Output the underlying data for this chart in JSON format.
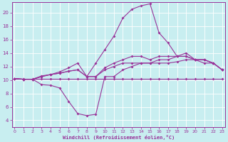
{
  "bg_color": "#c8eef0",
  "line_color": "#993399",
  "grid_color": "#ffffff",
  "xlabel": "Windchill (Refroidissement éolien,°C)",
  "xlabel_color": "#993399",
  "xtick_color": "#993399",
  "ytick_color": "#993399",
  "x": [
    0,
    1,
    2,
    3,
    4,
    5,
    6,
    7,
    8,
    9,
    10,
    11,
    12,
    13,
    14,
    15,
    16,
    17,
    18,
    19,
    20,
    21,
    22,
    23
  ],
  "line1": [
    10.2,
    10.2,
    10.2,
    10.2,
    10.2,
    10.2,
    10.2,
    10.2,
    10.2,
    10.2,
    10.2,
    10.2,
    10.2,
    10.2,
    10.2,
    10.2,
    10.2,
    10.2,
    10.2,
    10.2,
    10.2,
    10.2,
    10.2,
    10.2
  ],
  "line2": [
    10.2,
    10.1,
    10.1,
    10.6,
    10.8,
    11.0,
    11.3,
    11.5,
    10.5,
    10.5,
    11.5,
    12.0,
    12.5,
    12.5,
    12.5,
    12.5,
    12.5,
    12.5,
    12.7,
    13.0,
    13.0,
    13.0,
    12.5,
    11.5
  ],
  "line3": [
    10.2,
    10.1,
    10.1,
    10.5,
    10.8,
    11.0,
    11.3,
    11.5,
    10.5,
    10.5,
    11.8,
    12.5,
    13.0,
    13.5,
    13.5,
    13.0,
    13.5,
    13.5,
    13.5,
    13.5,
    13.0,
    13.0,
    12.5,
    11.5
  ],
  "line4": [
    10.2,
    10.1,
    10.1,
    9.3,
    9.2,
    8.8,
    6.8,
    5.0,
    4.7,
    4.9,
    10.5,
    10.5,
    11.5,
    12.0,
    12.5,
    12.5,
    13.0,
    13.0,
    13.5,
    14.0,
    13.0,
    12.5,
    12.5,
    11.5
  ],
  "line5": [
    10.2,
    10.1,
    10.1,
    10.5,
    10.8,
    11.2,
    11.8,
    12.5,
    10.5,
    12.5,
    14.5,
    16.5,
    19.2,
    20.5,
    21.0,
    21.3,
    17.0,
    15.5,
    13.5,
    13.5,
    13.0,
    13.0,
    12.5,
    11.5
  ],
  "ylim": [
    3,
    21.5
  ],
  "xlim": [
    -0.3,
    23.3
  ],
  "yticks": [
    4,
    6,
    8,
    10,
    12,
    14,
    16,
    18,
    20
  ],
  "xticks": [
    0,
    1,
    2,
    3,
    4,
    5,
    6,
    7,
    8,
    9,
    10,
    11,
    12,
    13,
    14,
    15,
    16,
    17,
    18,
    19,
    20,
    21,
    22,
    23
  ],
  "marker": "D",
  "markersize": 2.0,
  "linewidth": 0.8
}
